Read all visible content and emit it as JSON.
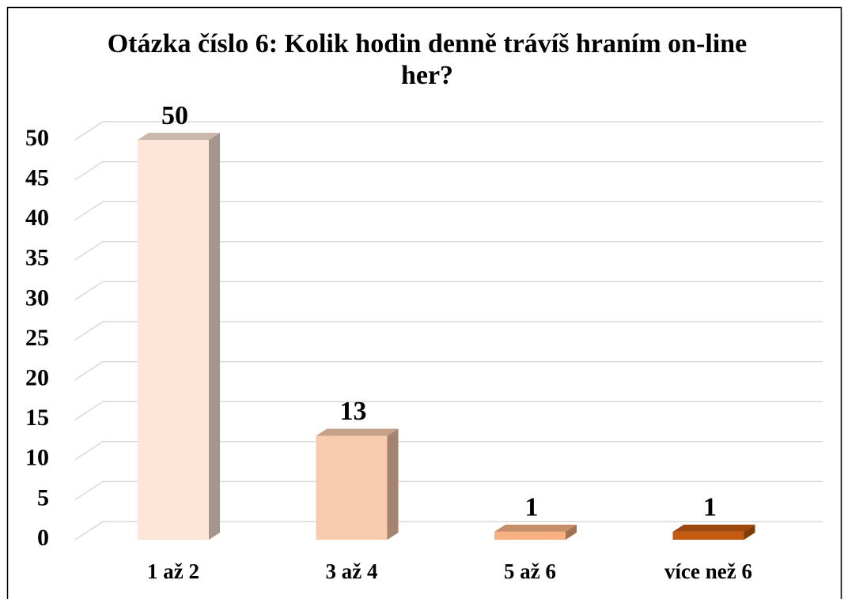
{
  "chart_data": {
    "type": "bar3d",
    "title": "Otázka číslo 6: Kolik hodin denně trávíš hraním on-line her?",
    "categories": [
      "1 až 2",
      "3 až 4",
      "5 až 6",
      "více než 6"
    ],
    "values": [
      50,
      13,
      1,
      1
    ],
    "colors": [
      "#fde6d8",
      "#f9cbad",
      "#f8b183",
      "#c55a11"
    ],
    "ylim": [
      0,
      50
    ],
    "yticks": [
      0,
      5,
      10,
      15,
      20,
      25,
      30,
      35,
      40,
      45,
      50
    ],
    "grid": true
  }
}
